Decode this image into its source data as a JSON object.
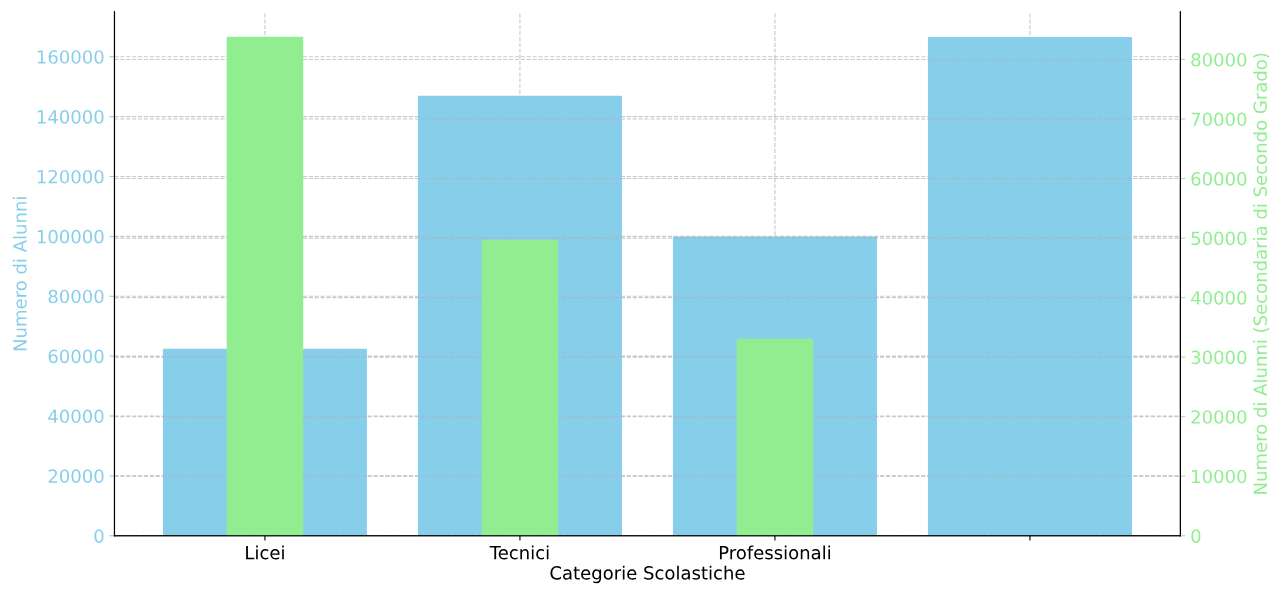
{
  "chart_data": {
    "type": "bar",
    "xlabel": "Categorie Scolastiche",
    "ylabel": "Numero di Alunni",
    "y2label": "Numero di Alunni (Secondaria di Secondo Grado)",
    "categories": [
      "Licei",
      "Tecnici",
      "Professionali",
      null
    ],
    "series": [
      {
        "color": "#87ceeb",
        "values": [
          62500,
          147000,
          100000,
          166600
        ]
      },
      {
        "color": "#90ee90",
        "values": [
          83800,
          49700,
          33100,
          null
        ],
        "axis": "y2"
      }
    ],
    "ylim": [
      0,
      175000
    ],
    "yticks": [
      0,
      20000,
      40000,
      60000,
      80000,
      100000,
      120000,
      140000,
      160000
    ],
    "y2lim": [
      0,
      88000
    ],
    "y2ticks": [
      0,
      10000,
      20000,
      30000,
      40000,
      50000,
      60000,
      70000,
      80000
    ],
    "grid": true
  }
}
